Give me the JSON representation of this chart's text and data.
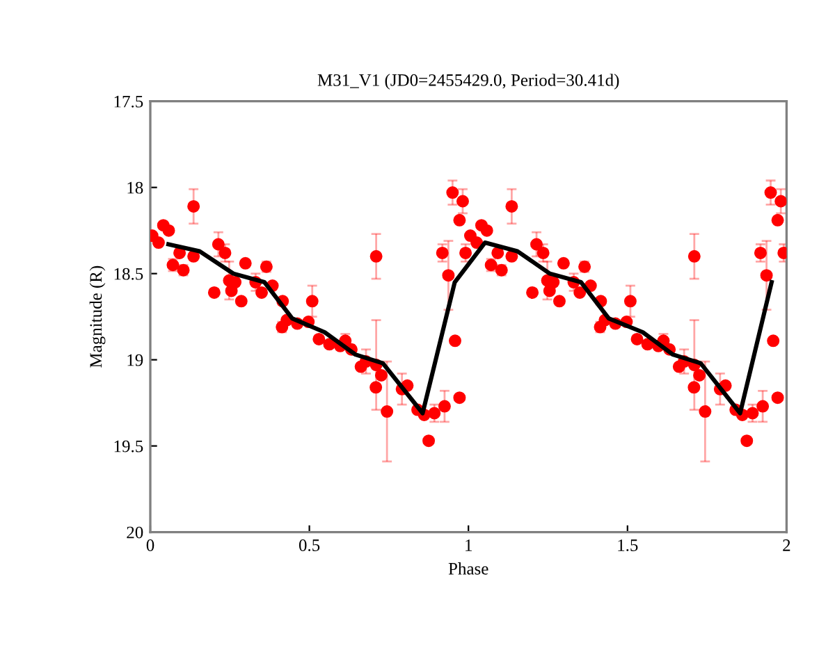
{
  "chart_data": {
    "type": "scatter",
    "title": "M31_V1 (JD0=2455429.0, Period=30.41d)",
    "xlabel": "Phase",
    "ylabel": "Magnitude (R)",
    "xlim": [
      0,
      2
    ],
    "xticks": [
      0,
      0.5,
      1,
      1.5,
      2
    ],
    "ylim": [
      20,
      17.5
    ],
    "yticks": [
      17.5,
      18,
      18.5,
      19,
      19.5,
      20
    ],
    "grid": false,
    "series": [
      {
        "color": "#ff0000",
        "marker": "circle",
        "x": [
          0.006,
          0.026,
          0.041,
          0.058,
          0.071,
          0.092,
          0.104,
          0.136,
          0.136,
          0.201,
          0.214,
          0.235,
          0.248,
          0.255,
          0.267,
          0.286,
          0.299,
          0.331,
          0.35,
          0.365,
          0.384,
          0.416,
          0.414,
          0.429,
          0.462,
          0.497,
          0.509,
          0.53,
          0.563,
          0.597,
          0.613,
          0.632,
          0.662,
          0.678,
          0.71,
          0.71,
          0.709,
          0.726,
          0.744,
          0.791,
          0.808,
          0.84,
          0.861,
          0.875,
          0.893,
          0.925,
          0.918,
          0.937,
          0.95,
          0.958,
          0.972,
          0.982,
          0.972,
          0.991,
          1.006,
          1.026,
          1.041,
          1.058,
          1.071,
          1.092,
          1.104,
          1.136,
          1.136,
          1.201,
          1.214,
          1.235,
          1.248,
          1.255,
          1.267,
          1.286,
          1.299,
          1.331,
          1.35,
          1.365,
          1.384,
          1.416,
          1.414,
          1.429,
          1.462,
          1.497,
          1.509,
          1.53,
          1.563,
          1.597,
          1.613,
          1.632,
          1.662,
          1.678,
          1.71,
          1.71,
          1.709,
          1.726,
          1.744,
          1.791,
          1.808,
          1.84,
          1.861,
          1.875,
          1.893,
          1.925,
          1.918,
          1.937,
          1.95,
          1.958,
          1.972,
          1.982,
          1.972,
          1.991
        ],
        "values": [
          18.28,
          18.32,
          18.22,
          18.25,
          18.45,
          18.38,
          18.48,
          18.11,
          18.4,
          18.61,
          18.33,
          18.38,
          18.54,
          18.6,
          18.55,
          18.66,
          18.44,
          18.55,
          18.61,
          18.46,
          18.57,
          18.66,
          18.81,
          18.77,
          18.79,
          18.78,
          18.66,
          18.88,
          18.91,
          18.92,
          18.89,
          18.94,
          19.04,
          19.01,
          18.4,
          19.03,
          19.16,
          19.09,
          19.3,
          19.17,
          19.15,
          19.29,
          19.32,
          19.47,
          19.31,
          19.27,
          18.38,
          18.51,
          18.03,
          18.89,
          19.22,
          18.08,
          18.19,
          18.38,
          18.28,
          18.32,
          18.22,
          18.25,
          18.45,
          18.38,
          18.48,
          18.11,
          18.4,
          18.61,
          18.33,
          18.38,
          18.54,
          18.6,
          18.55,
          18.66,
          18.44,
          18.55,
          18.61,
          18.46,
          18.57,
          18.66,
          18.81,
          18.77,
          18.79,
          18.78,
          18.66,
          18.88,
          18.91,
          18.92,
          18.89,
          18.94,
          19.04,
          19.01,
          18.4,
          19.03,
          19.16,
          19.09,
          19.3,
          19.17,
          19.15,
          19.29,
          19.32,
          19.47,
          19.31,
          19.27,
          18.38,
          18.51,
          18.03,
          18.89,
          19.22,
          18.08,
          18.19,
          18.38
        ],
        "errors": [
          null,
          null,
          null,
          null,
          0.035,
          null,
          0.03,
          0.1,
          0.02,
          0.02,
          0.07,
          0.05,
          0.11,
          null,
          null,
          null,
          null,
          0.05,
          null,
          0.03,
          null,
          0.02,
          0.03,
          null,
          0.02,
          null,
          0.09,
          null,
          null,
          null,
          0.04,
          null,
          null,
          0.07,
          0.13,
          0.26,
          null,
          null,
          0.29,
          0.09,
          null,
          null,
          null,
          null,
          0.05,
          0.09,
          0.05,
          0.2,
          0.07,
          null,
          null,
          0.07,
          null,
          0.05,
          null,
          null,
          null,
          null,
          0.035,
          null,
          0.03,
          0.1,
          0.02,
          0.02,
          0.07,
          0.05,
          0.11,
          null,
          null,
          null,
          null,
          0.05,
          null,
          0.03,
          null,
          0.02,
          0.03,
          null,
          0.02,
          null,
          0.09,
          null,
          null,
          null,
          0.04,
          null,
          null,
          0.07,
          0.13,
          0.26,
          null,
          null,
          0.29,
          0.09,
          null,
          null,
          null,
          null,
          0.05,
          0.09,
          0.05,
          0.2,
          0.07,
          null,
          null,
          0.07,
          null,
          0.05
        ]
      },
      {
        "type": "line",
        "color": "#000000",
        "marker": "none",
        "line_style": "solid",
        "x": [
          0.057,
          0.155,
          0.261,
          0.359,
          0.446,
          0.548,
          0.645,
          0.731,
          0.856,
          0.957,
          1.052,
          1.154,
          1.256,
          1.354,
          1.441,
          1.548,
          1.643,
          1.73,
          1.854,
          1.953
        ],
        "values": [
          18.33,
          18.37,
          18.5,
          18.55,
          18.76,
          18.84,
          18.97,
          19.02,
          19.31,
          18.55,
          18.32,
          18.37,
          18.5,
          18.55,
          18.76,
          18.84,
          18.97,
          19.02,
          19.31,
          18.55
        ]
      }
    ]
  }
}
